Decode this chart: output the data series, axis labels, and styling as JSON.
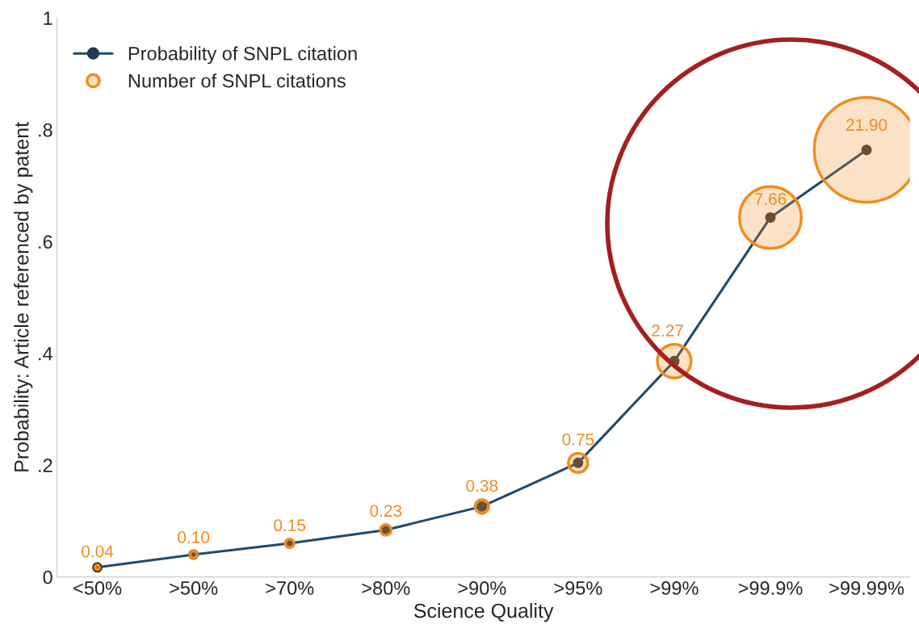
{
  "chart_data": {
    "type": "line",
    "xlabel": "Science Quality",
    "ylabel": "Probability: Article referenced by patent",
    "categories": [
      "<50%",
      ">50%",
      ">70%",
      ">80%",
      ">90%",
      ">95%",
      ">99%",
      ">99.9%",
      ">99.99%"
    ],
    "series": [
      {
        "name": "Probability of SNPL citation",
        "color": "#1f4a6e",
        "marker": "circle",
        "values": [
          0.017,
          0.04,
          0.06,
          0.084,
          0.126,
          0.204,
          0.386,
          0.643,
          0.764
        ]
      },
      {
        "name": "Number of SNPL citations",
        "type": "bubble",
        "color": "#f08c1e",
        "values": [
          0.017,
          0.04,
          0.06,
          0.084,
          0.126,
          0.204,
          0.386,
          0.643,
          0.764
        ],
        "sizes": [
          0.04,
          0.1,
          0.15,
          0.23,
          0.38,
          0.75,
          2.27,
          7.66,
          21.9
        ],
        "value_labels": [
          "0.04",
          "0.10",
          "0.15",
          "0.23",
          "0.38",
          "0.75",
          "2.27",
          "7.66",
          "21.90"
        ]
      }
    ],
    "ylim": [
      0,
      1
    ],
    "yticks": [
      0,
      {
        "value": 0.2,
        "label": ".2"
      },
      {
        "value": 0.4,
        "label": ".4"
      },
      {
        "value": 0.6,
        "label": ".6"
      },
      {
        "value": 0.8,
        "label": ".8"
      },
      1
    ],
    "grid": false,
    "legend": "top left"
  }
}
